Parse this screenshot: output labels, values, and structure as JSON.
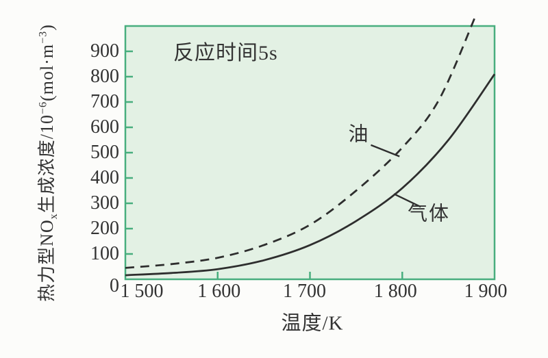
{
  "colors": {
    "page_background": "#fcfcfa",
    "plot_background": "#e3f1e4",
    "plot_border": "#48ae7e",
    "curve": "#2e2e2e",
    "text": "#333333"
  },
  "chart_data": {
    "type": "line",
    "annotation": "反应时间5s",
    "xlabel": "温度/K",
    "ylabel": "热力型NOx生成浓度/10⁻⁶(mol·m⁻³)",
    "ylabel_parts": {
      "base1": "热力型NO",
      "sub1": "x",
      "base2": "生成浓度/10",
      "sup1": "−6",
      "base3": "(mol·m",
      "sup2": "−3",
      "base4": ")"
    },
    "xlim": [
      1500,
      1900
    ],
    "ylim": [
      0,
      1000
    ],
    "grid": false,
    "x_ticks": [
      1500,
      1600,
      1700,
      1800,
      1900
    ],
    "x_tick_labels": [
      "1 500",
      "1 600",
      "1 700",
      "1 800",
      "1 900"
    ],
    "y_ticks": [
      0,
      100,
      200,
      300,
      400,
      500,
      600,
      700,
      800,
      900
    ],
    "y_tick_labels": [
      "0",
      "100",
      "200",
      "300",
      "400",
      "500",
      "600",
      "700",
      "800",
      "900"
    ],
    "series": [
      {
        "name": "油",
        "style": "dashed",
        "x": [
          1500,
          1550,
          1600,
          1650,
          1700,
          1750,
          1800,
          1840,
          1880
        ],
        "y": [
          45,
          60,
          85,
          135,
          215,
          350,
          520,
          710,
          1045
        ]
      },
      {
        "name": "气体",
        "style": "solid",
        "x": [
          1500,
          1550,
          1600,
          1650,
          1700,
          1750,
          1800,
          1850,
          1900
        ],
        "y": [
          16,
          25,
          40,
          75,
          135,
          230,
          360,
          550,
          810
        ]
      }
    ],
    "leaders": [
      {
        "for": "油",
        "from": [
          1766,
          530
        ],
        "to": [
          1797,
          485
        ]
      },
      {
        "for": "气体",
        "from": [
          1791,
          337
        ],
        "to": [
          1820,
          286
        ]
      }
    ]
  }
}
